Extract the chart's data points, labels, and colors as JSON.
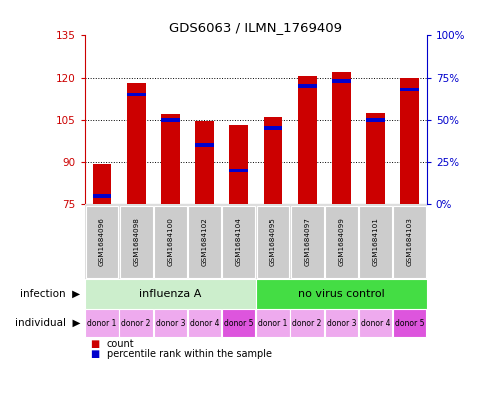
{
  "title": "GDS6063 / ILMN_1769409",
  "samples": [
    "GSM1684096",
    "GSM1684098",
    "GSM1684100",
    "GSM1684102",
    "GSM1684104",
    "GSM1684095",
    "GSM1684097",
    "GSM1684099",
    "GSM1684101",
    "GSM1684103"
  ],
  "count_values": [
    89.5,
    118,
    107,
    104.5,
    103,
    106,
    120.5,
    122,
    107.5,
    120
  ],
  "percentile_values": [
    5,
    65,
    50,
    35,
    20,
    45,
    70,
    73,
    50,
    68
  ],
  "ylim_left": [
    75,
    135
  ],
  "ylim_right": [
    0,
    100
  ],
  "yticks_left": [
    75,
    90,
    105,
    120,
    135
  ],
  "yticks_right": [
    0,
    25,
    50,
    75,
    100
  ],
  "ytick_labels_right": [
    "0%",
    "25%",
    "50%",
    "75%",
    "100%"
  ],
  "bar_color": "#cc0000",
  "percentile_color": "#0000cc",
  "grid_color": "#000000",
  "infection_groups": [
    {
      "label": "influenza A",
      "start": 0,
      "end": 5,
      "color": "#cceecc"
    },
    {
      "label": "no virus control",
      "start": 5,
      "end": 10,
      "color": "#44dd44"
    }
  ],
  "individual_labels": [
    "donor 1",
    "donor 2",
    "donor 3",
    "donor 4",
    "donor 5",
    "donor 1",
    "donor 2",
    "donor 3",
    "donor 4",
    "donor 5"
  ],
  "ind_colors": [
    "#eeaaee",
    "#eeaaee",
    "#eeaaee",
    "#eeaaee",
    "#dd55dd",
    "#eeaaee",
    "#eeaaee",
    "#eeaaee",
    "#eeaaee",
    "#dd55dd"
  ],
  "sample_bg_color": "#cccccc",
  "left_label_color": "#cc0000",
  "right_label_color": "#0000cc",
  "legend_count_color": "#cc0000",
  "legend_percentile_color": "#0000cc"
}
